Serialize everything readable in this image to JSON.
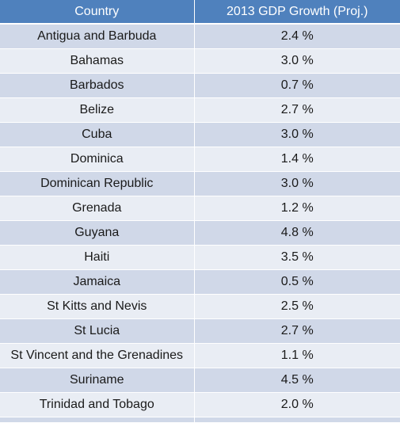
{
  "table": {
    "headers": {
      "country": "Country",
      "growth": "2013 GDP Growth (Proj.)"
    },
    "rows": [
      {
        "country": "Antigua and Barbuda",
        "growth": "2.4 %"
      },
      {
        "country": "Bahamas",
        "growth": "3.0 %"
      },
      {
        "country": "Barbados",
        "growth": "0.7 %"
      },
      {
        "country": "Belize",
        "growth": "2.7 %"
      },
      {
        "country": "Cuba",
        "growth": "3.0 %"
      },
      {
        "country": "Dominica",
        "growth": "1.4 %"
      },
      {
        "country": "Dominican Republic",
        "growth": "3.0 %"
      },
      {
        "country": "Grenada",
        "growth": "1.2 %"
      },
      {
        "country": "Guyana",
        "growth": "4.8 %"
      },
      {
        "country": "Haiti",
        "growth": "3.5 %"
      },
      {
        "country": "Jamaica",
        "growth": "0.5 %"
      },
      {
        "country": "St Kitts and Nevis",
        "growth": "2.5 %"
      },
      {
        "country": "St Lucia",
        "growth": "2.7 %"
      },
      {
        "country": "St Vincent and the Grenadines",
        "growth": "1.1 %"
      },
      {
        "country": "Suriname",
        "growth": "4.5 %"
      },
      {
        "country": "Trinidad and Tobago",
        "growth": "2.0 %"
      }
    ]
  },
  "colors": {
    "header_bg": "#4f81bd",
    "row_band_dark": "#d0d8e8",
    "row_band_light": "#e9edf4"
  }
}
